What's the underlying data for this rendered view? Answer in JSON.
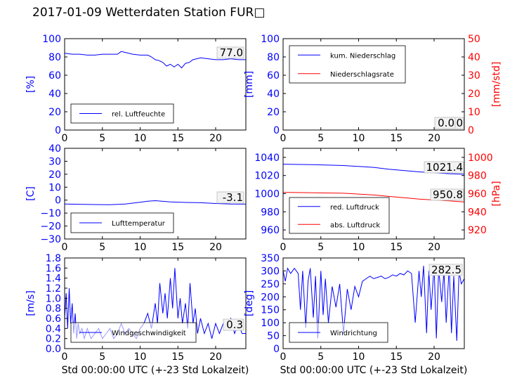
{
  "figure": {
    "title": "2017-01-09 Wetterdaten Station FUR□"
  },
  "colors": {
    "blue": "#0000ff",
    "red": "#ff0000",
    "black": "#000000"
  },
  "chart_data": [
    {
      "id": "humidity",
      "type": "line",
      "xlim": [
        0,
        24
      ],
      "ylim": [
        0,
        100
      ],
      "xticks": [
        "0",
        "5",
        "10",
        "15",
        "20"
      ],
      "yticks": [
        "0",
        "20",
        "40",
        "60",
        "80",
        "100"
      ],
      "ylabel": "[%]",
      "ylabel_color": "#0000ff",
      "legend": [
        "rel. Luftfeuchte"
      ],
      "legend_placement": "lower-left",
      "annotations": [
        "77.0"
      ],
      "series": [
        {
          "name": "rel. Luftfeuchte",
          "color": "#0000ff",
          "x": [
            0,
            1,
            2,
            3,
            4,
            5,
            6,
            7,
            7.5,
            8,
            9,
            10,
            11,
            11.5,
            12,
            12.5,
            13,
            13.5,
            14,
            14.5,
            15,
            15.5,
            16,
            16.5,
            17,
            18,
            19,
            20,
            21,
            22,
            23,
            24
          ],
          "y": [
            84,
            83,
            83,
            82,
            82,
            83,
            83,
            83,
            86,
            85,
            83,
            82,
            82,
            80,
            77,
            76,
            74,
            70,
            72,
            69,
            72,
            68,
            73,
            74,
            77,
            79,
            78,
            77,
            77,
            78,
            77,
            77
          ]
        }
      ]
    },
    {
      "id": "precipitation",
      "type": "line",
      "xlim": [
        0,
        24
      ],
      "ylim": [
        0,
        100
      ],
      "ylim_right": [
        0,
        50
      ],
      "xticks": [
        "0",
        "5",
        "10",
        "15",
        "20"
      ],
      "yticks": [
        "0",
        "20",
        "40",
        "60",
        "80",
        "100"
      ],
      "yticks_right": [
        "0",
        "10",
        "20",
        "30",
        "40",
        "50"
      ],
      "ylabel": "[mm]",
      "ylabel_color": "#0000ff",
      "ylabel_right": "[mm/std]",
      "ylabel_right_color": "#ff0000",
      "legend": [
        "kum. Niederschlag",
        "Niederschlagsrate"
      ],
      "legend_placement": "upper-left",
      "annotations": [
        "0.0",
        "0.0"
      ],
      "series": [
        {
          "name": "kum. Niederschlag",
          "color": "#0000ff",
          "x": [
            0,
            24
          ],
          "y": [
            0,
            0
          ]
        },
        {
          "name": "Niederschlagsrate",
          "color": "#ff0000",
          "x": [
            0,
            24
          ],
          "y": [
            0,
            0
          ]
        }
      ]
    },
    {
      "id": "temperature",
      "type": "line",
      "xlim": [
        0,
        24
      ],
      "ylim": [
        -30,
        40
      ],
      "xticks": [
        "0",
        "5",
        "10",
        "15",
        "20"
      ],
      "yticks": [
        "−30",
        "−20",
        "−10",
        "0",
        "10",
        "20",
        "30",
        "40"
      ],
      "ylabel": "[C]",
      "ylabel_color": "#0000ff",
      "legend": [
        "Lufttemperatur"
      ],
      "legend_placement": "lower-left",
      "annotations": [
        "-3.1"
      ],
      "series": [
        {
          "name": "Lufttemperatur",
          "color": "#0000ff",
          "x": [
            0,
            2,
            4,
            6,
            8,
            10,
            11,
            12,
            13,
            14,
            16,
            18,
            20,
            22,
            24
          ],
          "y": [
            -3.0,
            -3.2,
            -3.4,
            -3.6,
            -3.0,
            -1.6,
            -0.8,
            -0.4,
            -0.9,
            -1.4,
            -1.8,
            -2.0,
            -2.6,
            -3.0,
            -3.1
          ]
        }
      ]
    },
    {
      "id": "pressure",
      "type": "line",
      "xlim": [
        0,
        24
      ],
      "ylim": [
        950,
        1050
      ],
      "ylim_right": [
        910,
        1010
      ],
      "xticks": [
        "0",
        "5",
        "10",
        "15",
        "20"
      ],
      "yticks": [
        "960",
        "980",
        "1000",
        "1020",
        "1040"
      ],
      "yticks_right": [
        "920",
        "940",
        "960",
        "980",
        "1000"
      ],
      "ylabel_right": "[hPa]",
      "ylabel_right_color": "#ff0000",
      "legend": [
        "red. Luftdruck",
        "abs. Luftdruck"
      ],
      "legend_placement": "lower-left",
      "annotations": [
        "1021.4",
        "950.8"
      ],
      "series": [
        {
          "name": "red. Luftdruck",
          "color": "#0000ff",
          "x": [
            0,
            4,
            8,
            10,
            12,
            14,
            16,
            18,
            20,
            22,
            24
          ],
          "y": [
            1032.5,
            1032,
            1031,
            1030,
            1029,
            1027,
            1025.5,
            1024,
            1023,
            1022,
            1021.4
          ]
        },
        {
          "name": "abs. Luftdruck",
          "color": "#ff0000",
          "x": [
            0,
            4,
            8,
            10,
            12,
            14,
            16,
            18,
            20,
            22,
            24
          ],
          "y": [
            961.5,
            961,
            960.5,
            959.5,
            958.5,
            957,
            955.5,
            954,
            953,
            952,
            950.8
          ]
        }
      ]
    },
    {
      "id": "windspeed",
      "type": "line",
      "xlim": [
        0,
        24
      ],
      "ylim": [
        0,
        1.8
      ],
      "xticks": [
        "0",
        "5",
        "10",
        "15",
        "20"
      ],
      "yticks": [
        "0.0",
        "0.2",
        "0.4",
        "0.6",
        "0.8",
        "1.0",
        "1.2",
        "1.4",
        "1.6",
        "1.8"
      ],
      "ylabel": "[m/s]",
      "ylabel_color": "#0000ff",
      "legend": [
        "Windgeschwindigkeit"
      ],
      "legend_placement": "lower-left",
      "annotations": [
        "0.3"
      ],
      "xlabel": "Std 00:00:00 UTC (+-23 Std Lokalzeit)",
      "series": [
        {
          "name": "Windgeschwindigkeit",
          "color": "#0000ff",
          "x": [
            0,
            0.2,
            0.4,
            0.6,
            0.8,
            1,
            1.2,
            1.4,
            1.6,
            1.8,
            2,
            2.3,
            2.6,
            3,
            3.5,
            4,
            4.5,
            5,
            5.5,
            6,
            6.5,
            7,
            7.5,
            8,
            8.5,
            9,
            9.5,
            10,
            10.5,
            11,
            11.5,
            12,
            12.3,
            12.6,
            13,
            13.3,
            13.6,
            14,
            14.3,
            14.6,
            15,
            15.3,
            15.6,
            16,
            16.3,
            16.6,
            17,
            17.3,
            17.6,
            18,
            18.5,
            19,
            19.5,
            20,
            20.5,
            21,
            21.5,
            22,
            22.5,
            23,
            23.5,
            24
          ],
          "y": [
            0.6,
            1.1,
            0.4,
            1.2,
            0.5,
            0.9,
            0.3,
            0.7,
            0.2,
            0.5,
            0.3,
            0.4,
            0.2,
            0.4,
            0.2,
            0.3,
            0.4,
            0.2,
            0.3,
            0.4,
            0.2,
            0.3,
            0.5,
            0.3,
            0.4,
            0.3,
            0.2,
            0.4,
            0.5,
            0.7,
            0.4,
            0.9,
            0.5,
            1.3,
            0.7,
            1.1,
            0.6,
            1.4,
            0.8,
            1.6,
            0.6,
            1.0,
            0.5,
            0.9,
            0.4,
            1.3,
            0.5,
            0.8,
            0.3,
            0.6,
            0.3,
            0.5,
            0.2,
            0.5,
            0.3,
            0.5,
            0.4,
            0.6,
            0.3,
            0.5,
            0.3,
            0.3
          ]
        }
      ]
    },
    {
      "id": "winddirection",
      "type": "line",
      "xlim": [
        0,
        24
      ],
      "ylim": [
        0,
        350
      ],
      "xticks": [
        "0",
        "5",
        "10",
        "15",
        "20"
      ],
      "yticks": [
        "0",
        "50",
        "100",
        "150",
        "200",
        "250",
        "300",
        "350"
      ],
      "ylabel": "[deg]",
      "ylabel_color": "#0000ff",
      "legend": [
        "Windrichtung"
      ],
      "legend_placement": "lower-left",
      "annotations": [
        "282.5"
      ],
      "xlabel": "Std 00:00:00 UTC (+-23 Std Lokalzeit)",
      "series": [
        {
          "name": "Windrichtung",
          "color": "#0000ff",
          "x": [
            0,
            0.3,
            0.6,
            1,
            1.5,
            2,
            2.3,
            2.6,
            3,
            3.3,
            3.6,
            4,
            4.3,
            4.6,
            5,
            5.3,
            5.6,
            6,
            6.5,
            7,
            7.5,
            8,
            8.5,
            9,
            9.5,
            10,
            10.5,
            11,
            11.5,
            12,
            12.5,
            13,
            13.5,
            14,
            14.5,
            15,
            15.5,
            16,
            16.5,
            17,
            17.5,
            18,
            18.3,
            18.6,
            19,
            19.3,
            19.6,
            20,
            20.3,
            20.6,
            21,
            21.3,
            21.6,
            22,
            22.3,
            22.6,
            23,
            23.3,
            23.6,
            24
          ],
          "y": [
            300,
            260,
            310,
            290,
            310,
            290,
            150,
            300,
            80,
            260,
            310,
            120,
            280,
            40,
            300,
            130,
            270,
            100,
            240,
            160,
            250,
            60,
            230,
            150,
            240,
            200,
            260,
            270,
            280,
            270,
            275,
            280,
            270,
            275,
            285,
            280,
            290,
            285,
            300,
            290,
            100,
            300,
            200,
            320,
            60,
            300,
            150,
            320,
            40,
            310,
            180,
            300,
            100,
            320,
            60,
            280,
            30,
            300,
            250,
            270
          ]
        }
      ]
    }
  ]
}
